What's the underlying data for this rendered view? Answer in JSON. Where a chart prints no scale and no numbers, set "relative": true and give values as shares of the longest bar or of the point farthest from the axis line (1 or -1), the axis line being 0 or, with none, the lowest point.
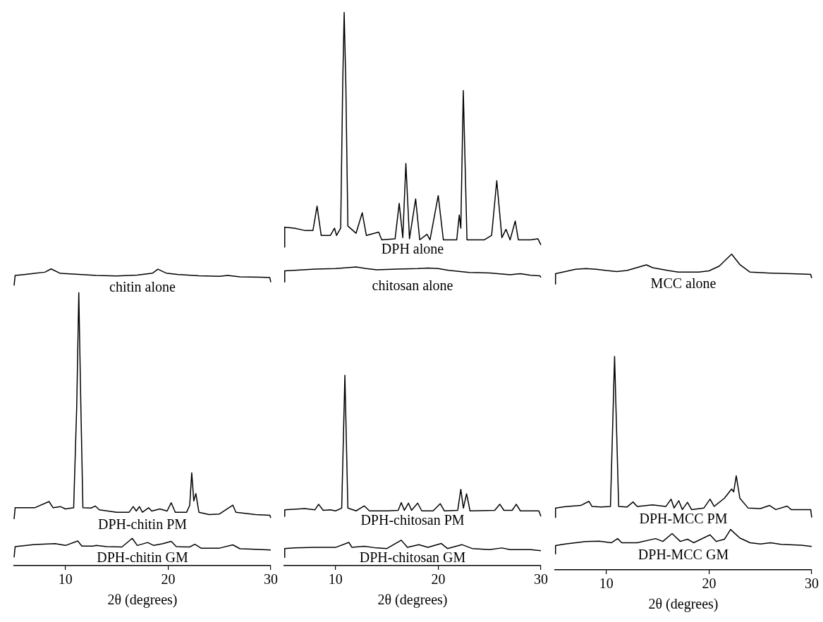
{
  "chart_data": [
    {
      "type": "line",
      "relative": true,
      "xlim": [
        5,
        30
      ],
      "xticks": [
        10,
        20,
        30
      ],
      "xlabel": "2θ (degrees)",
      "series": [
        {
          "name": "chitin alone",
          "color": "#000000",
          "x": [
            5,
            5.1,
            6,
            7,
            8,
            8.6,
            9.5,
            11,
            13,
            15,
            17,
            18.5,
            19,
            19.8,
            21,
            23,
            25,
            25.8,
            27,
            29,
            29.9,
            30
          ],
          "values": [
            0.944,
            0.978,
            0.981,
            0.985,
            0.989,
            1,
            0.985,
            0.982,
            0.978,
            0.976,
            0.979,
            0.986,
            0.999,
            0.986,
            0.981,
            0.977,
            0.975,
            0.978,
            0.973,
            0.972,
            0.971,
            0.955
          ]
        },
        {
          "name": "DPH-chitin PM",
          "color": "#000000",
          "x": [
            5,
            5.1,
            7,
            8.4,
            8.8,
            9.5,
            10,
            10.8,
            11.1,
            11.3,
            11.5,
            11.7,
            12.5,
            12.9,
            13.3,
            15,
            16.2,
            16.6,
            16.9,
            17.2,
            17.5,
            18.1,
            18.4,
            19.2,
            19.9,
            20.3,
            20.7,
            21.8,
            22.1,
            22.3,
            22.5,
            22.7,
            23.0,
            24,
            25,
            26.3,
            26.6,
            27.5,
            28.5,
            29.9,
            30
          ],
          "values": [
            0.157,
            0.195,
            0.195,
            0.216,
            0.195,
            0.199,
            0.191,
            0.195,
            0.539,
            0.92,
            0.539,
            0.195,
            0.194,
            0.201,
            0.188,
            0.18,
            0.18,
            0.199,
            0.184,
            0.199,
            0.18,
            0.195,
            0.184,
            0.191,
            0.184,
            0.212,
            0.18,
            0.18,
            0.203,
            0.313,
            0.218,
            0.243,
            0.18,
            0.172,
            0.174,
            0.204,
            0.18,
            0.176,
            0.172,
            0.17,
            0.161
          ]
        },
        {
          "name": "DPH-chitin GM",
          "color": "#000000",
          "x": [
            5,
            5.1,
            7,
            9,
            10,
            11.2,
            11.6,
            12.7,
            13,
            14,
            15.5,
            16.5,
            17,
            18.0,
            18.6,
            19.5,
            20.3,
            20.8,
            22.1,
            22.6,
            23.2,
            25,
            26.3,
            27,
            28,
            30
          ],
          "values": [
            0.028,
            0.064,
            0.071,
            0.074,
            0.068,
            0.083,
            0.066,
            0.066,
            0.068,
            0.064,
            0.063,
            0.092,
            0.068,
            0.078,
            0.068,
            0.074,
            0.082,
            0.064,
            0.063,
            0.072,
            0.059,
            0.059,
            0.07,
            0.057,
            0.056,
            0.053
          ]
        }
      ]
    },
    {
      "type": "line",
      "relative": true,
      "xlim": [
        5,
        30
      ],
      "xticks": [
        10,
        20,
        30
      ],
      "xlabel": "2θ (degrees)",
      "series": [
        {
          "name": "DPH alone",
          "color": "#000000",
          "x": [
            5,
            5.05,
            6,
            7,
            7.8,
            8.2,
            8.6,
            9.5,
            9.9,
            10.1,
            10.5,
            10.7,
            10.84,
            11.0,
            11.2,
            12,
            12.6,
            13,
            14.2,
            14.5,
            15.8,
            16.2,
            16.55,
            16.85,
            17.2,
            17.8,
            18.2,
            18.9,
            19.2,
            20.0,
            20.5,
            21.8,
            22.05,
            22.2,
            22.44,
            22.8,
            24.5,
            25.2,
            25.7,
            26.2,
            26.6,
            27,
            27.5,
            27.8,
            29,
            29.7,
            30
          ],
          "values": [
            0.576,
            0.612,
            0.61,
            0.606,
            0.606,
            0.65,
            0.597,
            0.597,
            0.61,
            0.597,
            0.61,
            0.873,
            1,
            0.873,
            0.614,
            0.601,
            0.638,
            0.597,
            0.603,
            0.589,
            0.591,
            0.655,
            0.593,
            0.727,
            0.591,
            0.663,
            0.589,
            0.599,
            0.589,
            0.669,
            0.589,
            0.589,
            0.634,
            0.61,
            0.859,
            0.589,
            0.589,
            0.597,
            0.696,
            0.593,
            0.608,
            0.589,
            0.623,
            0.589,
            0.589,
            0.591,
            0.58
          ]
        },
        {
          "name": "chitosan alone",
          "color": "#000000",
          "x": [
            5,
            5.05,
            6,
            8,
            10,
            12,
            13,
            14,
            16,
            18,
            19,
            20,
            21,
            23,
            25,
            27,
            28,
            29,
            29.9,
            30
          ],
          "values": [
            0.513,
            0.533,
            0.534,
            0.536,
            0.537,
            0.54,
            0.537,
            0.535,
            0.536,
            0.537,
            0.538,
            0.537,
            0.534,
            0.53,
            0.529,
            0.526,
            0.528,
            0.525,
            0.524,
            0.521
          ]
        },
        {
          "name": "DPH-chitosan PM",
          "color": "#000000",
          "x": [
            5,
            5.05,
            7,
            8.0,
            8.35,
            8.8,
            9.5,
            10,
            10.6,
            10.91,
            11.2,
            12,
            12.8,
            13.3,
            15,
            16.1,
            16.4,
            16.7,
            17.1,
            17.4,
            18.0,
            18.4,
            19.5,
            20.2,
            20.6,
            21.9,
            22.2,
            22.45,
            22.76,
            23.1,
            25.5,
            26.0,
            26.4,
            27.2,
            27.6,
            28.0,
            29.8,
            30
          ],
          "values": [
            0.089,
            0.101,
            0.103,
            0.101,
            0.111,
            0.1,
            0.101,
            0.099,
            0.104,
            0.344,
            0.104,
            0.099,
            0.108,
            0.099,
            0.099,
            0.1,
            0.114,
            0.1,
            0.113,
            0.1,
            0.113,
            0.099,
            0.099,
            0.112,
            0.099,
            0.1,
            0.138,
            0.104,
            0.13,
            0.099,
            0.1,
            0.111,
            0.1,
            0.1,
            0.111,
            0.099,
            0.099,
            0.089
          ]
        },
        {
          "name": "DPH-chitosan GM",
          "color": "#000000",
          "x": [
            5,
            5.05,
            6,
            8,
            10,
            11.3,
            11.6,
            12.8,
            14,
            15,
            16.4,
            17,
            18.1,
            19,
            20.3,
            20.9,
            22.3,
            23.3,
            25,
            26.2,
            27,
            29,
            30
          ],
          "values": [
            0.015,
            0.031,
            0.032,
            0.033,
            0.033,
            0.042,
            0.033,
            0.035,
            0.032,
            0.031,
            0.046,
            0.033,
            0.038,
            0.033,
            0.04,
            0.031,
            0.038,
            0.031,
            0.029,
            0.032,
            0.029,
            0.029,
            0.027
          ]
        }
      ]
    },
    {
      "type": "line",
      "relative": true,
      "xlim": [
        5,
        30
      ],
      "xticks": [
        10,
        20,
        30
      ],
      "xlabel": "2θ (degrees)",
      "series": [
        {
          "name": "MCC alone",
          "color": "#000000",
          "x": [
            5,
            5.05,
            6,
            7,
            8,
            9,
            10,
            11,
            12,
            13.9,
            14.5,
            16,
            17,
            19,
            20,
            21,
            22.2,
            23,
            24,
            26,
            28,
            29.9,
            30
          ],
          "values": [
            0.905,
            0.938,
            0.945,
            0.952,
            0.954,
            0.952,
            0.948,
            0.945,
            0.948,
            0.966,
            0.957,
            0.948,
            0.943,
            0.943,
            0.947,
            0.962,
            1,
            0.967,
            0.943,
            0.94,
            0.938,
            0.936,
            0.924
          ]
        },
        {
          "name": "DPH-MCC PM",
          "color": "#000000",
          "x": [
            5,
            5.05,
            6,
            7.5,
            8.3,
            8.6,
            9.5,
            10.4,
            10.8,
            11.2,
            12,
            12.6,
            13,
            14.5,
            15.8,
            16.3,
            16.6,
            17.05,
            17.4,
            17.9,
            18.3,
            19.5,
            20.1,
            20.5,
            21.5,
            22.2,
            22.4,
            22.65,
            23,
            23.8,
            25,
            25.9,
            26.5,
            27.6,
            28,
            29.9,
            30
          ],
          "values": [
            0.166,
            0.196,
            0.2,
            0.204,
            0.217,
            0.201,
            0.199,
            0.201,
            0.676,
            0.201,
            0.199,
            0.215,
            0.201,
            0.206,
            0.201,
            0.224,
            0.196,
            0.219,
            0.191,
            0.214,
            0.191,
            0.196,
            0.224,
            0.201,
            0.227,
            0.256,
            0.247,
            0.298,
            0.227,
            0.196,
            0.194,
            0.204,
            0.191,
            0.202,
            0.191,
            0.191,
            0.166
          ]
        },
        {
          "name": "DPH-MCC GM",
          "color": "#000000",
          "x": [
            5,
            5.05,
            6,
            8,
            9.3,
            10.5,
            11.1,
            11.5,
            13,
            14.8,
            15.5,
            16.4,
            17.2,
            17.9,
            18.5,
            20.1,
            20.7,
            21.5,
            22.1,
            23,
            24,
            25,
            26,
            27,
            29,
            30
          ],
          "values": [
            0.051,
            0.077,
            0.082,
            0.09,
            0.091,
            0.086,
            0.099,
            0.086,
            0.086,
            0.099,
            0.09,
            0.115,
            0.09,
            0.097,
            0.086,
            0.111,
            0.09,
            0.097,
            0.128,
            0.101,
            0.086,
            0.082,
            0.086,
            0.081,
            0.078,
            0.074
          ]
        }
      ]
    }
  ]
}
